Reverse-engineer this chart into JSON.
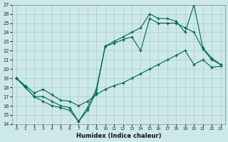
{
  "xlabel": "Humidex (Indice chaleur)",
  "bg_color": "#cce8e8",
  "grid_color": "#aacccc",
  "line_color": "#006655",
  "xlim": [
    -0.5,
    23.5
  ],
  "ylim": [
    14,
    27
  ],
  "xticks": [
    0,
    1,
    2,
    3,
    4,
    5,
    6,
    7,
    8,
    9,
    10,
    11,
    12,
    13,
    14,
    15,
    16,
    17,
    18,
    19,
    20,
    21,
    22,
    23
  ],
  "yticks": [
    14,
    15,
    16,
    17,
    18,
    19,
    20,
    21,
    22,
    23,
    24,
    25,
    26,
    27
  ],
  "line1_x": [
    0,
    1,
    2,
    3,
    4,
    5,
    6,
    7,
    8,
    9,
    10,
    11,
    12,
    13,
    14,
    15,
    16,
    17,
    18,
    19,
    20,
    21,
    22,
    23
  ],
  "line1_y": [
    19,
    18,
    17,
    16.5,
    16,
    15.8,
    15.5,
    14.3,
    15.5,
    17.5,
    22.5,
    22.8,
    23.2,
    23.5,
    22,
    25.5,
    25,
    25,
    25,
    24.5,
    24.0,
    22.2,
    21.0,
    20.5
  ],
  "line2_x": [
    0,
    1,
    2,
    3,
    4,
    5,
    6,
    7,
    8,
    9,
    10,
    11,
    12,
    13,
    14,
    15,
    16,
    17,
    18,
    19,
    20,
    21,
    22,
    23
  ],
  "line2_y": [
    19,
    18,
    17,
    17,
    16.5,
    16,
    15.8,
    14.3,
    15.8,
    17.8,
    22.5,
    23,
    23.5,
    24,
    24.5,
    26,
    25.5,
    25.5,
    25.2,
    24.0,
    27,
    22.3,
    21.2,
    20.5
  ],
  "line3_x": [
    0,
    1,
    2,
    3,
    4,
    5,
    6,
    7,
    8,
    9,
    10,
    11,
    12,
    13,
    14,
    15,
    16,
    17,
    18,
    19,
    20,
    21,
    22,
    23
  ],
  "line3_y": [
    19,
    18.2,
    17.4,
    17.8,
    17.2,
    16.6,
    16.5,
    16.0,
    16.5,
    17.2,
    17.8,
    18.2,
    18.5,
    19.0,
    19.5,
    20.0,
    20.5,
    21.0,
    21.5,
    22.0,
    20.5,
    21.0,
    20.2,
    20.3
  ]
}
